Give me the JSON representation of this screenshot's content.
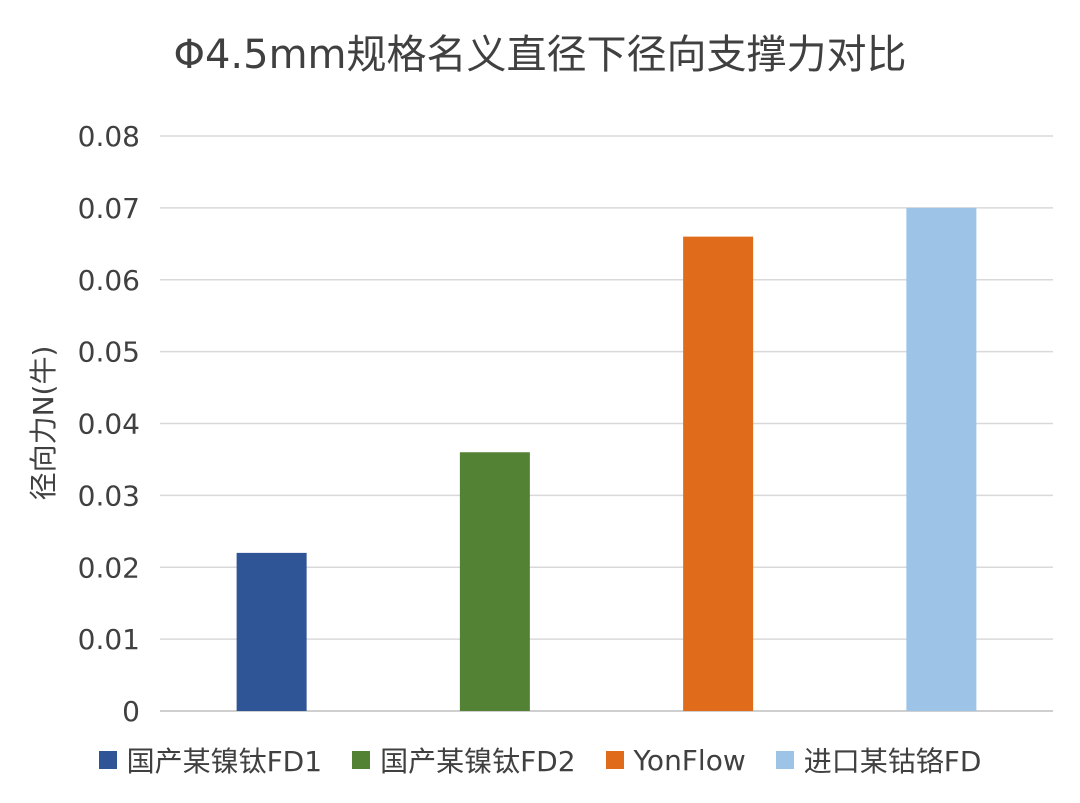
{
  "chart_data": {
    "type": "bar",
    "title": "Φ4.5mm规格名义直径下径向支撑力对比",
    "xlabel": "",
    "ylabel": "径向力N(牛)",
    "ylim": [
      0,
      0.08
    ],
    "yticks": [
      "0",
      "0.01",
      "0.02",
      "0.03",
      "0.04",
      "0.05",
      "0.06",
      "0.07",
      "0.08"
    ],
    "grid": true,
    "legend_position": "bottom",
    "series": [
      {
        "name": "国产某镍钛FD1",
        "value": 0.022,
        "color": "#2F5597"
      },
      {
        "name": "国产某镍钛FD2",
        "value": 0.036,
        "color": "#548235"
      },
      {
        "name": "YonFlow",
        "value": 0.066,
        "color": "#E06C1B"
      },
      {
        "name": "进口某钴铬FD",
        "value": 0.07,
        "color": "#9DC3E6"
      }
    ]
  }
}
